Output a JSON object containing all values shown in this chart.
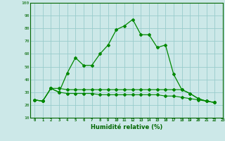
{
  "xlabel": "Humidité relative (%)",
  "bg_color": "#cce8e8",
  "grid_color": "#99cccc",
  "line_color": "#008800",
  "xlim": [
    -0.5,
    23
  ],
  "ylim": [
    10,
    100
  ],
  "xticks": [
    0,
    1,
    2,
    3,
    4,
    5,
    6,
    7,
    8,
    9,
    10,
    11,
    12,
    13,
    14,
    15,
    16,
    17,
    18,
    19,
    20,
    21,
    22,
    23
  ],
  "yticks": [
    10,
    20,
    30,
    40,
    50,
    60,
    70,
    80,
    90,
    100
  ],
  "series1": [
    24,
    23,
    33,
    30,
    45,
    57,
    51,
    51,
    60,
    67,
    79,
    82,
    87,
    75,
    75,
    65,
    67,
    44,
    32,
    29,
    25,
    23,
    22
  ],
  "series2": [
    24,
    23,
    33,
    33,
    32,
    32,
    32,
    32,
    32,
    32,
    32,
    32,
    32,
    32,
    32,
    32,
    32,
    32,
    32,
    29,
    25,
    23,
    22
  ],
  "series3": [
    24,
    23,
    33,
    30,
    29,
    29,
    29,
    29,
    28,
    28,
    28,
    28,
    28,
    28,
    28,
    28,
    27,
    27,
    26,
    25,
    24,
    23,
    22
  ]
}
